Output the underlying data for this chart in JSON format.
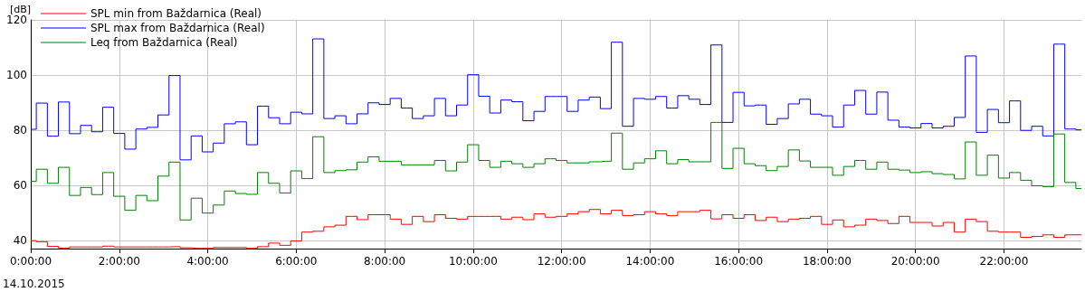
{
  "chart_data": {
    "type": "step",
    "ylabel": "[dB]",
    "annotations": [
      "14.10.2015"
    ],
    "x": [
      0,
      0.25,
      0.5,
      0.75,
      1,
      1.25,
      1.5,
      1.75,
      2,
      2.25,
      2.5,
      2.75,
      3,
      3.25,
      3.5,
      3.75,
      4,
      4.25,
      4.5,
      4.75,
      5,
      5.25,
      5.5,
      5.75,
      6,
      6.25,
      6.5,
      6.75,
      7,
      7.25,
      7.5,
      7.75,
      8,
      8.25,
      8.5,
      8.75,
      9,
      9.25,
      9.5,
      9.75,
      10,
      10.25,
      10.5,
      10.75,
      11,
      11.25,
      11.5,
      11.75,
      12,
      12.25,
      12.5,
      12.75,
      13,
      13.25,
      13.5,
      13.75,
      14,
      14.25,
      14.5,
      14.75,
      15,
      15.25,
      15.5,
      15.75,
      16,
      16.25,
      16.5,
      16.75,
      17,
      17.25,
      17.5,
      17.75,
      18,
      18.25,
      18.5,
      18.75,
      19,
      19.25,
      19.5,
      19.75,
      20,
      20.25,
      20.5,
      20.75,
      21,
      21.25,
      21.5,
      21.75,
      22,
      22.25,
      22.5,
      22.75,
      23,
      23.25,
      23.5,
      23.75
    ],
    "series": [
      {
        "name": "SPL min from Baždarnica (Real)",
        "color": "#ff0000",
        "values": [
          39.9,
          39.5,
          37.8,
          37.2,
          37.6,
          37.6,
          37.6,
          37.9,
          37.6,
          37.6,
          37.6,
          37.6,
          37.6,
          37.7,
          37.3,
          37.1,
          37.1,
          37.4,
          37.4,
          37.4,
          37.1,
          37.7,
          39.0,
          38.2,
          39.8,
          43.0,
          43.3,
          44.9,
          45.5,
          48.7,
          47.5,
          49.3,
          49.3,
          47.7,
          45.8,
          48.7,
          46.8,
          49.3,
          48.0,
          47.7,
          48.7,
          48.7,
          48.7,
          47.7,
          48.4,
          47.5,
          49.6,
          48.4,
          48.7,
          49.6,
          50.4,
          51.2,
          49.6,
          50.9,
          49.0,
          49.3,
          50.4,
          49.6,
          49.0,
          50.4,
          50.4,
          50.9,
          47.8,
          49.3,
          48.0,
          49.3,
          47.2,
          48.4,
          46.8,
          47.7,
          48.0,
          48.7,
          45.8,
          47.4,
          44.9,
          45.5,
          47.7,
          47.2,
          46.1,
          48.7,
          46.5,
          46.5,
          45.2,
          46.5,
          43.0,
          47.7,
          46.8,
          43.3,
          43.0,
          43.0,
          41.1,
          41.4,
          42.0,
          41.1,
          42.0,
          42.0
        ]
      },
      {
        "name": "SPL max from Baždarnica (Real)",
        "color": "#0000ff",
        "values": [
          80.3,
          89.8,
          77.8,
          90.2,
          78.7,
          81.7,
          79.4,
          88.3,
          78.8,
          73.1,
          80.4,
          81.0,
          85.5,
          99.8,
          69.2,
          77.9,
          72.1,
          75.3,
          82.3,
          83.0,
          74.7,
          88.7,
          84.5,
          82.3,
          86.5,
          85.9,
          113.1,
          84.2,
          85.2,
          82.3,
          85.9,
          89.9,
          89.3,
          91.5,
          88.0,
          84.2,
          85.2,
          91.5,
          85.2,
          89.1,
          100.1,
          92.3,
          86.2,
          90.9,
          90.3,
          83.4,
          86.8,
          92.2,
          92.2,
          86.8,
          90.9,
          92.0,
          87.8,
          111.9,
          81.4,
          91.5,
          91.2,
          92.2,
          88.0,
          92.5,
          91.2,
          89.3,
          110.9,
          82.8,
          93.7,
          88.8,
          89.1,
          82.1,
          84.2,
          89.5,
          91.2,
          85.8,
          85.2,
          81.1,
          89.1,
          94.4,
          85.8,
          93.8,
          83.6,
          81.1,
          80.8,
          82.4,
          80.8,
          81.4,
          84.6,
          106.9,
          79.2,
          87.5,
          82.7,
          90.6,
          79.9,
          81.4,
          77.9,
          111.2,
          80.4,
          80.1
        ]
      },
      {
        "name": "Leq from Baždarnica (Real)",
        "color": "#008000",
        "values": [
          61.4,
          65.8,
          60.7,
          66.5,
          56.3,
          59.2,
          56.6,
          64.6,
          56.0,
          50.9,
          56.3,
          54.4,
          63.3,
          68.4,
          47.4,
          55.3,
          49.9,
          52.8,
          57.9,
          57.0,
          56.7,
          64.6,
          60.7,
          57.2,
          65.2,
          62.4,
          77.6,
          64.6,
          65.3,
          65.6,
          68.4,
          70.3,
          68.7,
          68.7,
          67.4,
          67.4,
          67.4,
          69.0,
          65.2,
          68.4,
          74.7,
          69.0,
          66.5,
          68.7,
          67.8,
          66.5,
          67.8,
          69.6,
          69.0,
          68.1,
          68.1,
          68.5,
          68.7,
          78.9,
          65.8,
          68.1,
          69.6,
          72.5,
          67.8,
          69.3,
          68.5,
          68.5,
          82.8,
          66.1,
          73.4,
          67.8,
          67.1,
          65.3,
          66.8,
          72.8,
          68.8,
          66.5,
          66.5,
          63.6,
          66.8,
          69.0,
          65.8,
          68.4,
          65.8,
          65.5,
          64.6,
          64.9,
          64.2,
          63.9,
          62.3,
          75.7,
          63.6,
          70.9,
          62.6,
          64.6,
          61.8,
          59.8,
          59.5,
          78.6,
          61.0,
          58.8
        ]
      }
    ],
    "xlim": [
      0,
      23.75
    ],
    "xticks": [
      {
        "value": 0,
        "label": "0:00:00"
      },
      {
        "value": 2,
        "label": "2:00:00"
      },
      {
        "value": 4,
        "label": "4:00:00"
      },
      {
        "value": 6,
        "label": "6:00:00"
      },
      {
        "value": 8,
        "label": "8:00:00"
      },
      {
        "value": 10,
        "label": "10:00:00"
      },
      {
        "value": 12,
        "label": "12:00:00"
      },
      {
        "value": 14,
        "label": "14:00:00"
      },
      {
        "value": 16,
        "label": "16:00:00"
      },
      {
        "value": 18,
        "label": "18:00:00"
      },
      {
        "value": 20,
        "label": "20:00:00"
      },
      {
        "value": 22,
        "label": "22:00:00"
      }
    ],
    "ylim": [
      37,
      120
    ],
    "yticks": [
      40,
      60,
      80,
      100,
      120
    ],
    "grid": true,
    "legend": "top left",
    "marker": "none",
    "line_style": "solid"
  }
}
